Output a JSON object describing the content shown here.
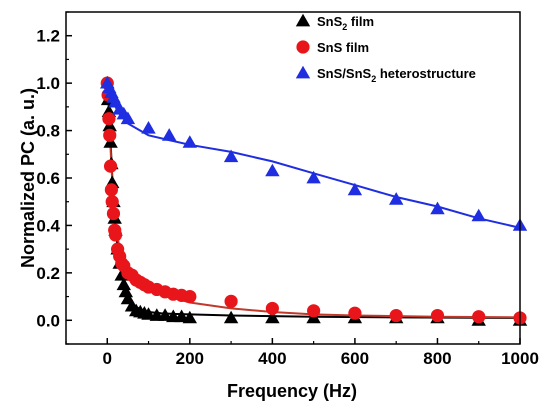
{
  "chart_data": {
    "type": "scatter",
    "xlabel": "Frequency (Hz)",
    "ylabel": "Normalized PC (a. u.)",
    "xlim": [
      -100,
      1000
    ],
    "ylim": [
      -0.1,
      1.3
    ],
    "xticks": [
      0,
      200,
      400,
      600,
      800,
      1000
    ],
    "yticks": [
      0.0,
      0.2,
      0.4,
      0.6,
      0.8,
      1.0,
      1.2
    ],
    "xtick_labels": [
      "0",
      "200",
      "400",
      "600",
      "800",
      "1000"
    ],
    "ytick_labels": [
      "0.0",
      "0.2",
      "0.4",
      "0.6",
      "0.8",
      "1.0",
      "1.2"
    ],
    "legend_position": "top-right",
    "grid": false,
    "series": [
      {
        "name": "SnS2 film",
        "legend_main": "SnS",
        "legend_sub": "2",
        "legend_rest": " film",
        "marker": "triangle",
        "color": "#000000",
        "fit_color": "#000000",
        "x": [
          0,
          2,
          4,
          6,
          8,
          10,
          12,
          15,
          18,
          20,
          25,
          30,
          35,
          40,
          45,
          50,
          60,
          70,
          80,
          90,
          100,
          120,
          140,
          160,
          180,
          200,
          300,
          400,
          500,
          600,
          700,
          800,
          900,
          1000
        ],
        "y": [
          1.0,
          0.93,
          0.88,
          0.82,
          0.75,
          0.66,
          0.58,
          0.5,
          0.43,
          0.38,
          0.3,
          0.24,
          0.19,
          0.15,
          0.12,
          0.09,
          0.06,
          0.04,
          0.035,
          0.03,
          0.025,
          0.02,
          0.02,
          0.015,
          0.015,
          0.01,
          0.01,
          0.01,
          0.01,
          0.01,
          0.01,
          0.01,
          0.0,
          0.0
        ],
        "fit_x": [
          0,
          5,
          10,
          15,
          20,
          30,
          40,
          50,
          60,
          80,
          100,
          130,
          160,
          200,
          300,
          500,
          700,
          1000
        ],
        "fit_y": [
          1.0,
          0.87,
          0.68,
          0.5,
          0.38,
          0.24,
          0.15,
          0.1,
          0.07,
          0.045,
          0.035,
          0.03,
          0.027,
          0.025,
          0.02,
          0.015,
          0.012,
          0.01
        ]
      },
      {
        "name": "SnS film",
        "legend_main": "SnS  film",
        "legend_sub": "",
        "legend_rest": "",
        "marker": "circle",
        "color": "#e8161b",
        "fit_color": "#c0392b",
        "x": [
          0,
          2,
          4,
          6,
          8,
          10,
          12,
          15,
          18,
          20,
          25,
          30,
          35,
          40,
          50,
          60,
          70,
          80,
          90,
          100,
          120,
          140,
          160,
          180,
          200,
          300,
          400,
          500,
          600,
          700,
          800,
          900,
          1000
        ],
        "y": [
          1.0,
          0.95,
          0.85,
          0.78,
          0.65,
          0.55,
          0.5,
          0.45,
          0.38,
          0.36,
          0.3,
          0.27,
          0.24,
          0.23,
          0.2,
          0.19,
          0.17,
          0.16,
          0.15,
          0.14,
          0.13,
          0.12,
          0.11,
          0.105,
          0.1,
          0.08,
          0.05,
          0.04,
          0.03,
          0.02,
          0.02,
          0.015,
          0.01
        ],
        "fit_x": [
          0,
          5,
          10,
          15,
          20,
          30,
          40,
          50,
          60,
          80,
          100,
          130,
          160,
          200,
          300,
          400,
          500,
          600,
          800,
          1000
        ],
        "fit_y": [
          1.0,
          0.84,
          0.65,
          0.5,
          0.4,
          0.3,
          0.26,
          0.23,
          0.2,
          0.165,
          0.14,
          0.115,
          0.095,
          0.075,
          0.05,
          0.035,
          0.025,
          0.02,
          0.015,
          0.012
        ]
      },
      {
        "name": "SnS/SnS2 heterostructure",
        "legend_main": "SnS/SnS",
        "legend_sub": "2",
        "legend_rest": " heterostructure",
        "marker": "triangle",
        "color": "#1f2ee0",
        "fit_color": "#1f2ee0",
        "x": [
          0,
          5,
          10,
          15,
          20,
          30,
          40,
          50,
          100,
          150,
          200,
          300,
          400,
          500,
          600,
          700,
          800,
          900,
          1000
        ],
        "y": [
          1.0,
          0.98,
          0.96,
          0.94,
          0.92,
          0.89,
          0.87,
          0.85,
          0.81,
          0.78,
          0.75,
          0.69,
          0.63,
          0.6,
          0.55,
          0.51,
          0.47,
          0.44,
          0.4
        ],
        "fit_x": [
          0,
          10,
          20,
          30,
          50,
          80,
          100,
          150,
          200,
          300,
          400,
          500,
          600,
          700,
          800,
          900,
          1000
        ],
        "fit_y": [
          1.0,
          0.94,
          0.9,
          0.87,
          0.83,
          0.8,
          0.78,
          0.76,
          0.74,
          0.71,
          0.67,
          0.62,
          0.57,
          0.52,
          0.48,
          0.43,
          0.39
        ]
      }
    ]
  }
}
